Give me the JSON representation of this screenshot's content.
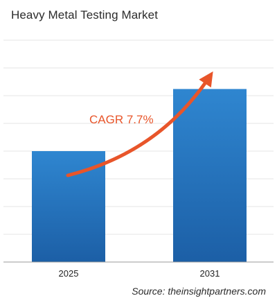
{
  "chart_data": {
    "type": "bar",
    "title": "Heavy Metal Testing Market",
    "categories": [
      "2025",
      "2031"
    ],
    "values": [
      100,
      156
    ],
    "ylim": [
      0,
      200
    ],
    "grid": true,
    "annotation": "CAGR 7.7%",
    "source": "Source: theinsightpartners.com",
    "colors": {
      "bar_top": "#2f86d0",
      "bar_bottom": "#1c5fa6",
      "arrow": "#e8552a",
      "grid": "#e4e4e4"
    }
  }
}
